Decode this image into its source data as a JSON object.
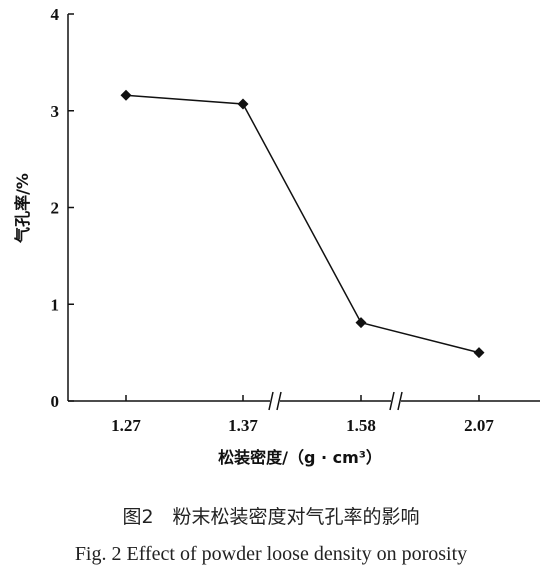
{
  "chart_data": {
    "type": "line",
    "categories": [
      "1.27",
      "1.37",
      "1.58",
      "2.07"
    ],
    "series": [
      {
        "values": [
          3.16,
          3.07,
          0.81,
          0.5
        ],
        "marker": "diamond",
        "color": "#111111"
      }
    ],
    "xlabel": "松装密度/（g · cm³）",
    "ylabel": "气孔率/%",
    "ylim": [
      0,
      4
    ],
    "yticks": [
      "0",
      "1",
      "2",
      "3",
      "4"
    ],
    "axis_breaks": [
      "between 1.37 and 1.58",
      "between 1.58 and 2.07"
    ],
    "grid": false
  },
  "caption": {
    "cn": "图2　粉末松装密度对气孔率的影响",
    "en": "Fig. 2 Effect of powder loose density on porosity"
  }
}
